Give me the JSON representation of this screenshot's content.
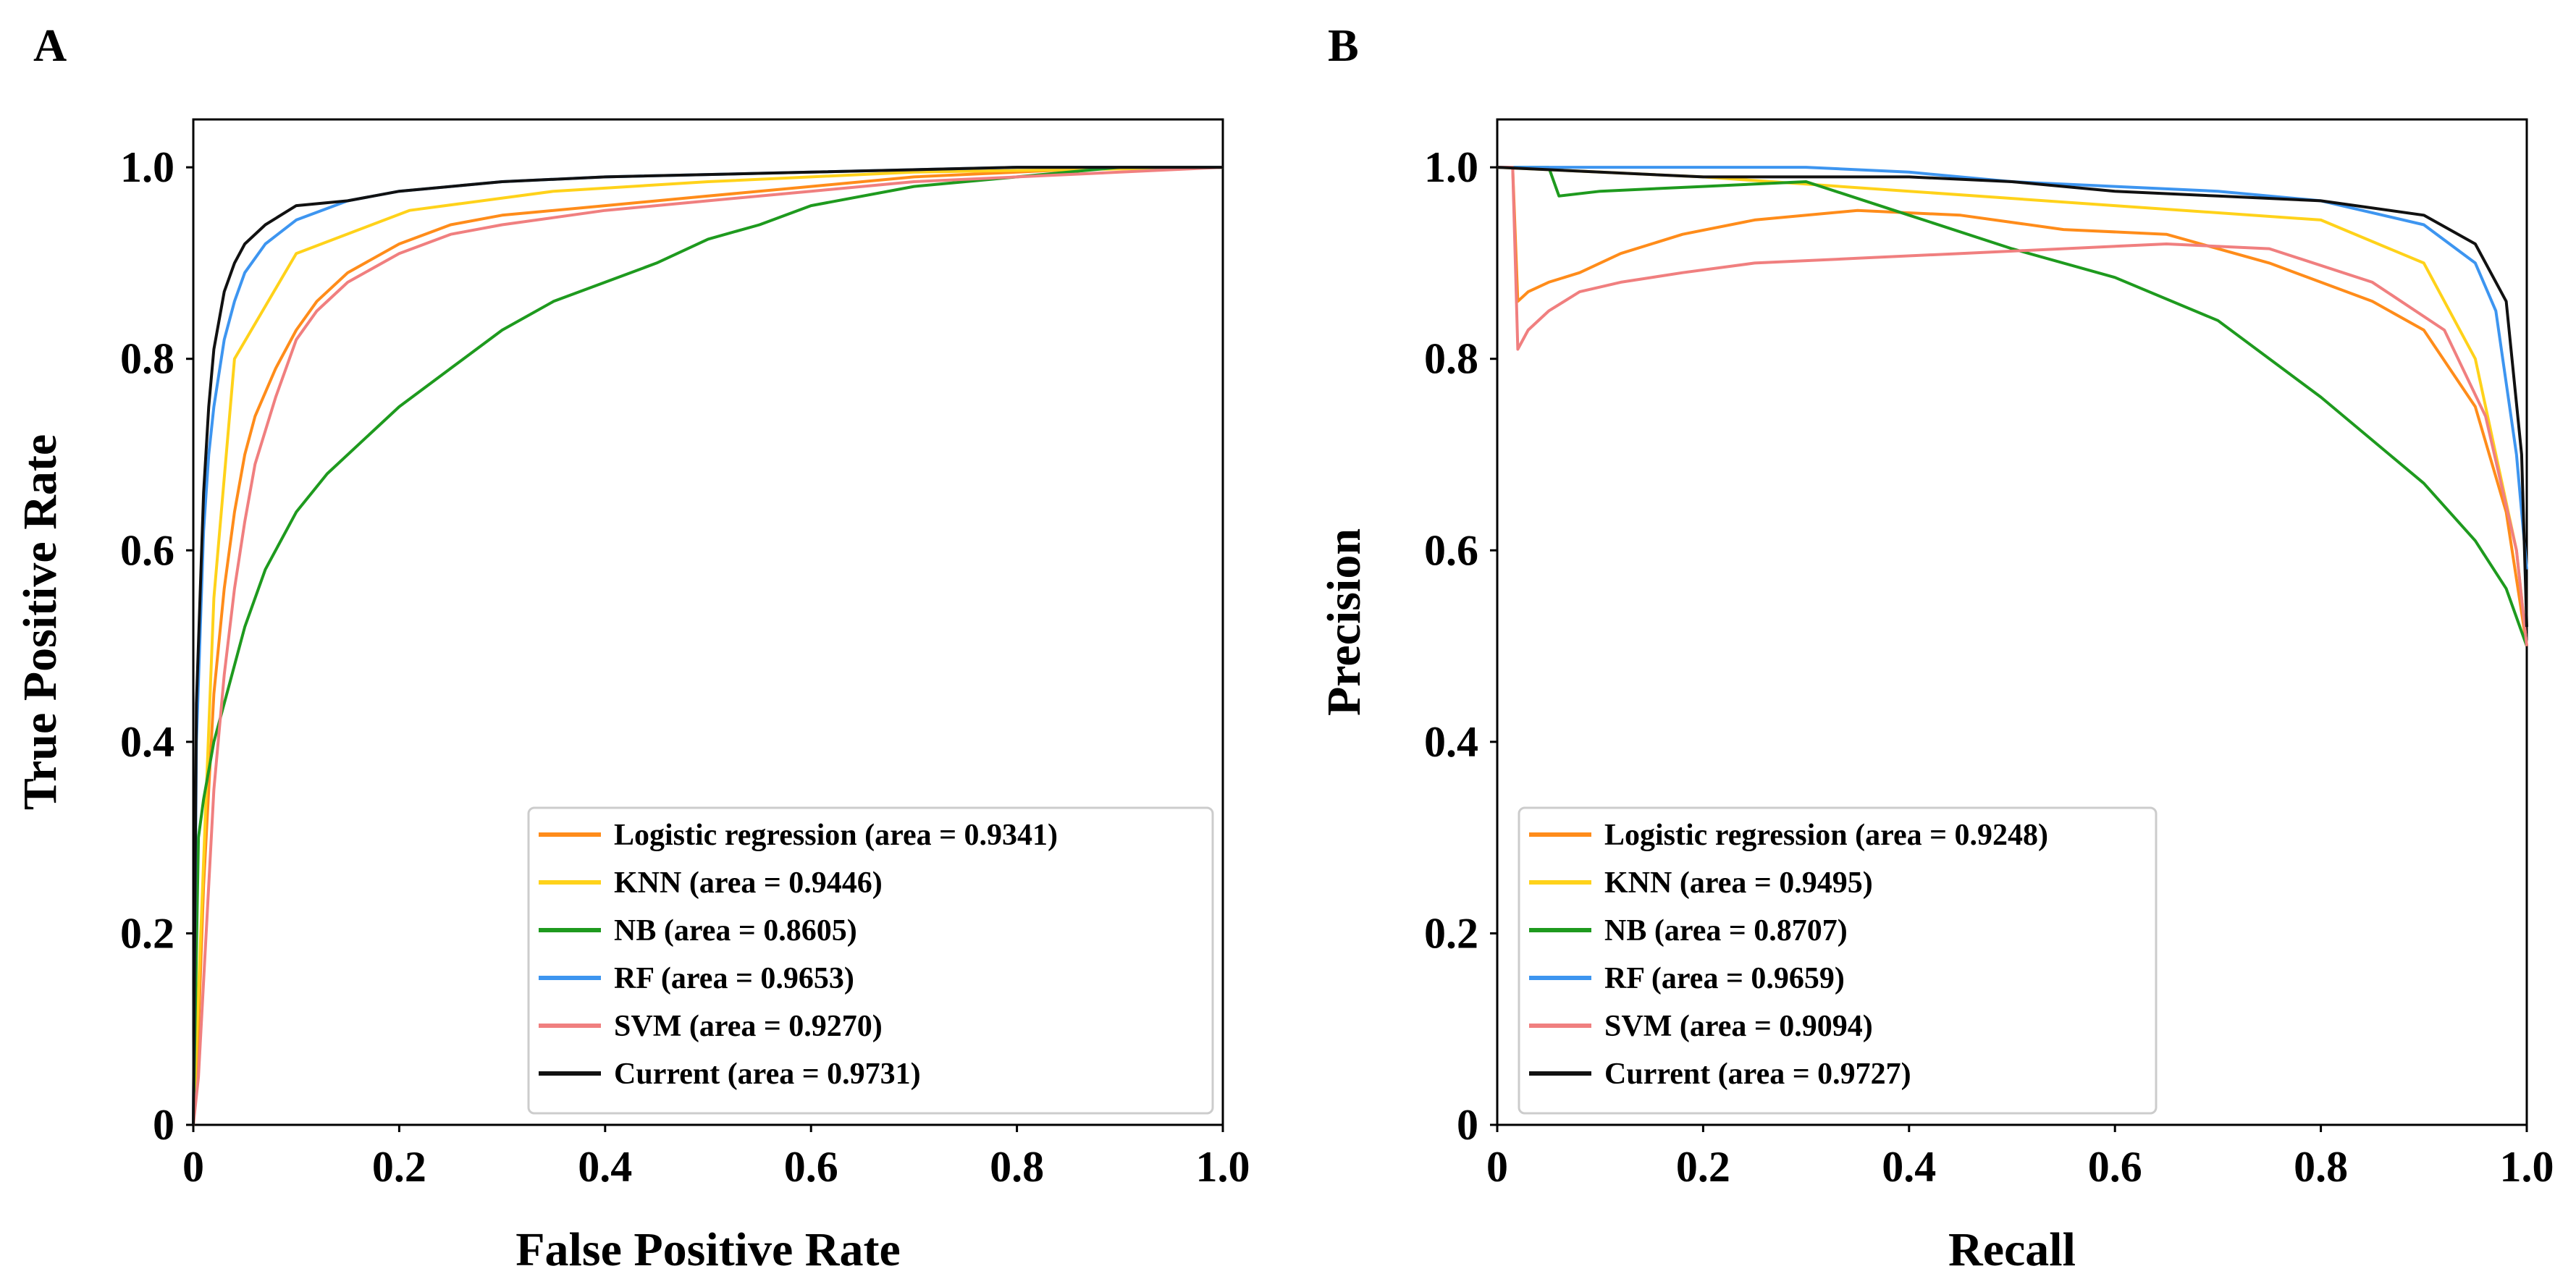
{
  "chart_data": [
    {
      "panel_label": "A",
      "type": "line",
      "title": "",
      "xlabel": "False Positive Rate",
      "ylabel": "True Positive Rate",
      "xlim": [
        0,
        1.0
      ],
      "ylim": [
        0,
        1.05
      ],
      "xticks": [
        0,
        0.2,
        0.4,
        0.6,
        0.8,
        1.0
      ],
      "yticks": [
        0,
        0.2,
        0.4,
        0.6,
        0.8,
        1.0
      ],
      "xtick_labels": [
        "0",
        "0.2",
        "0.4",
        "0.6",
        "0.8",
        "1.0"
      ],
      "ytick_labels": [
        "0",
        "0.2",
        "0.4",
        "0.6",
        "0.8",
        "1.0"
      ],
      "legend_position": "lower-right",
      "series": [
        {
          "name": "Logistic regression (area = 0.9341)",
          "color": "#ff8c1a",
          "x": [
            0,
            0.005,
            0.01,
            0.02,
            0.03,
            0.04,
            0.05,
            0.06,
            0.08,
            0.1,
            0.12,
            0.15,
            0.2,
            0.25,
            0.3,
            0.4,
            0.5,
            0.6,
            0.7,
            0.8,
            0.9,
            1.0
          ],
          "y": [
            0,
            0.1,
            0.25,
            0.45,
            0.56,
            0.64,
            0.7,
            0.74,
            0.79,
            0.83,
            0.86,
            0.89,
            0.92,
            0.94,
            0.95,
            0.96,
            0.97,
            0.98,
            0.99,
            0.995,
            1.0,
            1.0
          ]
        },
        {
          "name": "KNN (area = 0.9446)",
          "color": "#ffd21a",
          "x": [
            0,
            0.02,
            0.04,
            0.1,
            0.21,
            0.35,
            0.5,
            0.7,
            1.0
          ],
          "y": [
            0,
            0.55,
            0.8,
            0.91,
            0.955,
            0.975,
            0.985,
            0.995,
            1.0
          ]
        },
        {
          "name": "NB (area = 0.8605)",
          "color": "#1e9a1e",
          "x": [
            0,
            0.005,
            0.01,
            0.02,
            0.03,
            0.04,
            0.05,
            0.07,
            0.1,
            0.13,
            0.16,
            0.2,
            0.25,
            0.3,
            0.35,
            0.4,
            0.45,
            0.5,
            0.55,
            0.6,
            0.7,
            0.8,
            0.9,
            1.0
          ],
          "y": [
            0,
            0.3,
            0.34,
            0.4,
            0.44,
            0.48,
            0.52,
            0.58,
            0.64,
            0.68,
            0.71,
            0.75,
            0.79,
            0.83,
            0.86,
            0.88,
            0.9,
            0.925,
            0.94,
            0.96,
            0.98,
            0.99,
            1.0,
            1.0
          ]
        },
        {
          "name": "RF (area = 0.9653)",
          "color": "#3d95f0",
          "x": [
            0,
            0.003,
            0.01,
            0.015,
            0.02,
            0.03,
            0.04,
            0.05,
            0.07,
            0.1,
            0.15,
            0.2,
            0.3,
            0.4,
            0.6,
            0.8,
            1.0
          ],
          "y": [
            0,
            0.4,
            0.62,
            0.7,
            0.75,
            0.82,
            0.86,
            0.89,
            0.92,
            0.945,
            0.965,
            0.975,
            0.985,
            0.99,
            0.995,
            1.0,
            1.0
          ]
        },
        {
          "name": "SVM (area = 0.9270)",
          "color": "#f07f7f",
          "x": [
            0,
            0.005,
            0.01,
            0.02,
            0.03,
            0.04,
            0.05,
            0.06,
            0.08,
            0.1,
            0.12,
            0.15,
            0.2,
            0.25,
            0.3,
            0.4,
            0.5,
            0.6,
            0.7,
            0.8,
            0.9,
            1.0
          ],
          "y": [
            0,
            0.05,
            0.15,
            0.35,
            0.47,
            0.56,
            0.63,
            0.69,
            0.76,
            0.82,
            0.85,
            0.88,
            0.91,
            0.93,
            0.94,
            0.955,
            0.965,
            0.975,
            0.985,
            0.99,
            0.995,
            1.0
          ]
        },
        {
          "name": "Current (area = 0.9731)",
          "color": "#111111",
          "x": [
            0,
            0.003,
            0.01,
            0.015,
            0.02,
            0.03,
            0.04,
            0.05,
            0.07,
            0.1,
            0.15,
            0.2,
            0.3,
            0.4,
            0.6,
            0.8,
            1.0
          ],
          "y": [
            0,
            0.44,
            0.66,
            0.75,
            0.81,
            0.87,
            0.9,
            0.92,
            0.94,
            0.96,
            0.965,
            0.975,
            0.985,
            0.99,
            0.995,
            1.0,
            1.0
          ]
        }
      ]
    },
    {
      "panel_label": "B",
      "type": "line",
      "title": "",
      "xlabel": "Recall",
      "ylabel": "Precision",
      "xlim": [
        0,
        1.0
      ],
      "ylim": [
        0,
        1.05
      ],
      "xticks": [
        0,
        0.2,
        0.4,
        0.6,
        0.8,
        1.0
      ],
      "yticks": [
        0,
        0.2,
        0.4,
        0.6,
        0.8,
        1.0
      ],
      "xtick_labels": [
        "0",
        "0.2",
        "0.4",
        "0.6",
        "0.8",
        "1.0"
      ],
      "ytick_labels": [
        "0",
        "0.2",
        "0.4",
        "0.6",
        "0.8",
        "1.0"
      ],
      "legend_position": "lower-left",
      "series": [
        {
          "name": "Logistic regression (area = 0.9248)",
          "color": "#ff8c1a",
          "x": [
            0,
            0.015,
            0.02,
            0.03,
            0.05,
            0.08,
            0.12,
            0.18,
            0.25,
            0.35,
            0.45,
            0.55,
            0.65,
            0.75,
            0.85,
            0.9,
            0.95,
            0.98,
            1.0
          ],
          "y": [
            1.0,
            1.0,
            0.86,
            0.87,
            0.88,
            0.89,
            0.91,
            0.93,
            0.945,
            0.955,
            0.95,
            0.935,
            0.93,
            0.9,
            0.86,
            0.83,
            0.75,
            0.64,
            0.5
          ]
        },
        {
          "name": "KNN (area = 0.9495)",
          "color": "#ffd21a",
          "x": [
            0,
            0.1,
            0.2,
            0.4,
            0.6,
            0.8,
            0.9,
            0.95,
            0.99,
            1.0
          ],
          "y": [
            1.0,
            0.995,
            0.99,
            0.975,
            0.96,
            0.945,
            0.9,
            0.8,
            0.6,
            0.5
          ]
        },
        {
          "name": "NB (area = 0.8707)",
          "color": "#1e9a1e",
          "x": [
            0,
            0.05,
            0.06,
            0.1,
            0.2,
            0.3,
            0.4,
            0.5,
            0.6,
            0.7,
            0.8,
            0.9,
            0.95,
            0.98,
            1.0
          ],
          "y": [
            1.0,
            1.0,
            0.97,
            0.975,
            0.98,
            0.985,
            0.95,
            0.915,
            0.885,
            0.84,
            0.76,
            0.67,
            0.61,
            0.56,
            0.5
          ]
        },
        {
          "name": "RF (area = 0.9659)",
          "color": "#3d95f0",
          "x": [
            0,
            0.1,
            0.2,
            0.3,
            0.4,
            0.5,
            0.6,
            0.7,
            0.8,
            0.9,
            0.95,
            0.97,
            0.99,
            1.0
          ],
          "y": [
            1.0,
            1.0,
            1.0,
            1.0,
            0.995,
            0.985,
            0.98,
            0.975,
            0.965,
            0.94,
            0.9,
            0.85,
            0.7,
            0.58
          ]
        },
        {
          "name": "SVM (area = 0.9094)",
          "color": "#f07f7f",
          "x": [
            0,
            0.015,
            0.02,
            0.03,
            0.05,
            0.08,
            0.12,
            0.18,
            0.25,
            0.35,
            0.45,
            0.55,
            0.65,
            0.75,
            0.85,
            0.92,
            0.96,
            0.99,
            1.0
          ],
          "y": [
            1.0,
            1.0,
            0.81,
            0.83,
            0.85,
            0.87,
            0.88,
            0.89,
            0.9,
            0.905,
            0.91,
            0.915,
            0.92,
            0.915,
            0.88,
            0.83,
            0.74,
            0.6,
            0.5
          ]
        },
        {
          "name": "Current (area = 0.9727)",
          "color": "#111111",
          "x": [
            0,
            0.1,
            0.2,
            0.3,
            0.4,
            0.5,
            0.6,
            0.7,
            0.8,
            0.9,
            0.95,
            0.98,
            0.995,
            1.0
          ],
          "y": [
            1.0,
            0.995,
            0.99,
            0.99,
            0.99,
            0.985,
            0.975,
            0.97,
            0.965,
            0.95,
            0.92,
            0.86,
            0.7,
            0.52
          ]
        }
      ]
    }
  ]
}
